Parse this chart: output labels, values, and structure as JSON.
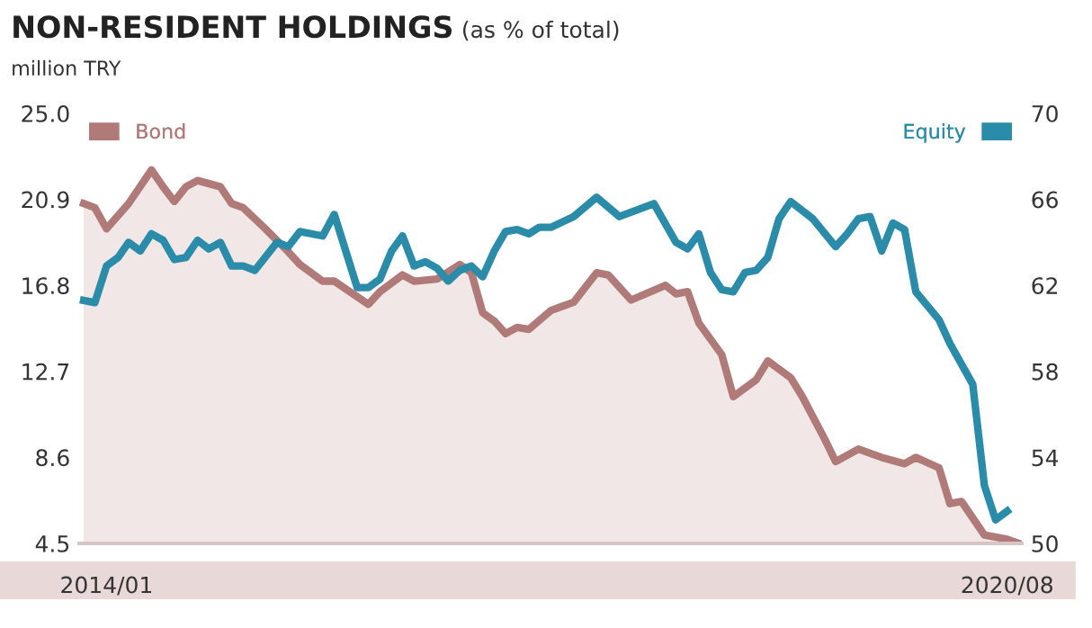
{
  "chart_data": {
    "type": "line",
    "title": "NON-RESIDENT HOLDINGS",
    "subtitle": "(as % of total)",
    "ylabel": "million TRY",
    "xlim": [
      "2013-10-20",
      "2020-09-09"
    ],
    "xticks": [
      {
        "value": "2014-01",
        "label": "2014/01"
      },
      {
        "value": "2020-08",
        "label": "2020/08"
      }
    ],
    "ylim": [
      4.5,
      25.0
    ],
    "yticks": [
      4.5,
      8.6,
      12.7,
      16.8,
      20.9,
      {
        "value": 25,
        "label": "25.0"
      }
    ],
    "y2lim": [
      50,
      70
    ],
    "y2ticks": [
      50,
      54,
      58,
      62,
      66,
      70
    ],
    "legend": "top",
    "grid": false,
    "series": [
      {
        "name": "Bond",
        "type": "area",
        "color": "#b07a78",
        "x": [
          "2013-11",
          "2013-12",
          "2014-01",
          "2014-03",
          "2014-05",
          "2014-06",
          "2014-07",
          "2014-08",
          "2014-09",
          "2014-11",
          "2014-12",
          "2015-01",
          "2015-03",
          "2015-05",
          "2015-06",
          "2015-08",
          "2015-09",
          "2015-12",
          "2016-01",
          "2016-03",
          "2016-04",
          "2016-06",
          "2016-08",
          "2016-09",
          "2016-10",
          "2016-11",
          "2016-12",
          "2017-01",
          "2017-02",
          "2017-04",
          "2017-05",
          "2017-06",
          "2017-08",
          "2017-09",
          "2017-11",
          "2018-02",
          "2018-03",
          "2018-04",
          "2018-05",
          "2018-07",
          "2018-08",
          "2018-10",
          "2018-11",
          "2019-01",
          "2019-02",
          "2019-04",
          "2019-05",
          "2019-07",
          "2019-09",
          "2019-11",
          "2019-12",
          "2020-02",
          "2020-03",
          "2020-04",
          "2020-06",
          "2020-08",
          "2020-09"
        ],
        "values": [
          20.7,
          20.5,
          19.5,
          20.7,
          22.3,
          21.5,
          20.8,
          21.5,
          21.8,
          21.5,
          20.7,
          20.5,
          19.5,
          18.4,
          17.8,
          17.0,
          17.0,
          15.9,
          16.5,
          17.3,
          17.0,
          17.1,
          17.8,
          17.4,
          15.5,
          15.1,
          14.5,
          14.8,
          14.7,
          15.6,
          15.8,
          16.0,
          17.4,
          17.3,
          16.1,
          16.8,
          16.4,
          16.5,
          15.0,
          13.5,
          11.5,
          12.3,
          13.2,
          12.4,
          11.5,
          9.5,
          8.4,
          9.0,
          8.6,
          8.3,
          8.6,
          8.1,
          6.4,
          6.5,
          4.9,
          4.7,
          4.5
        ]
      },
      {
        "name": "Equity",
        "type": "line",
        "axis": "y2",
        "color": "#2a8ca8",
        "x": [
          "2013-11",
          "2013-12",
          "2014-01",
          "2014-02",
          "2014-03",
          "2014-04",
          "2014-05",
          "2014-06",
          "2014-07",
          "2014-08",
          "2014-09",
          "2014-10",
          "2014-11",
          "2014-12",
          "2015-01",
          "2015-02",
          "2015-04",
          "2015-05",
          "2015-06",
          "2015-08",
          "2015-09",
          "2015-11",
          "2015-12",
          "2016-01",
          "2016-02",
          "2016-03",
          "2016-04",
          "2016-05",
          "2016-06",
          "2016-07",
          "2016-08",
          "2016-09",
          "2016-10",
          "2016-11",
          "2016-12",
          "2017-01",
          "2017-02",
          "2017-03",
          "2017-04",
          "2017-06",
          "2017-08",
          "2017-10",
          "2018-01",
          "2018-03",
          "2018-04",
          "2018-05",
          "2018-06",
          "2018-07",
          "2018-08",
          "2018-09",
          "2018-10",
          "2018-11",
          "2018-12",
          "2019-01",
          "2019-03",
          "2019-05",
          "2019-06",
          "2019-07",
          "2019-08",
          "2019-09",
          "2019-10",
          "2019-11",
          "2019-12",
          "2020-02",
          "2020-03",
          "2020-05",
          "2020-06",
          "2020-07",
          "2020-08"
        ],
        "values": [
          61.3,
          61.2,
          62.9,
          63.3,
          64.0,
          63.6,
          64.4,
          64.1,
          63.2,
          63.3,
          64.1,
          63.7,
          64.0,
          62.9,
          62.9,
          62.7,
          64.0,
          63.8,
          64.5,
          64.3,
          65.3,
          61.9,
          61.9,
          62.3,
          63.6,
          64.3,
          62.9,
          63.1,
          62.8,
          62.2,
          62.7,
          62.9,
          62.4,
          63.6,
          64.5,
          64.6,
          64.4,
          64.7,
          64.7,
          65.2,
          66.1,
          65.2,
          65.8,
          64.0,
          63.7,
          64.4,
          62.6,
          61.8,
          61.7,
          62.6,
          62.7,
          63.3,
          65.1,
          65.9,
          65.1,
          63.8,
          64.4,
          65.1,
          65.2,
          63.6,
          64.9,
          64.6,
          61.7,
          60.4,
          59.3,
          57.4,
          52.7,
          51.1,
          51.5
        ]
      }
    ]
  }
}
